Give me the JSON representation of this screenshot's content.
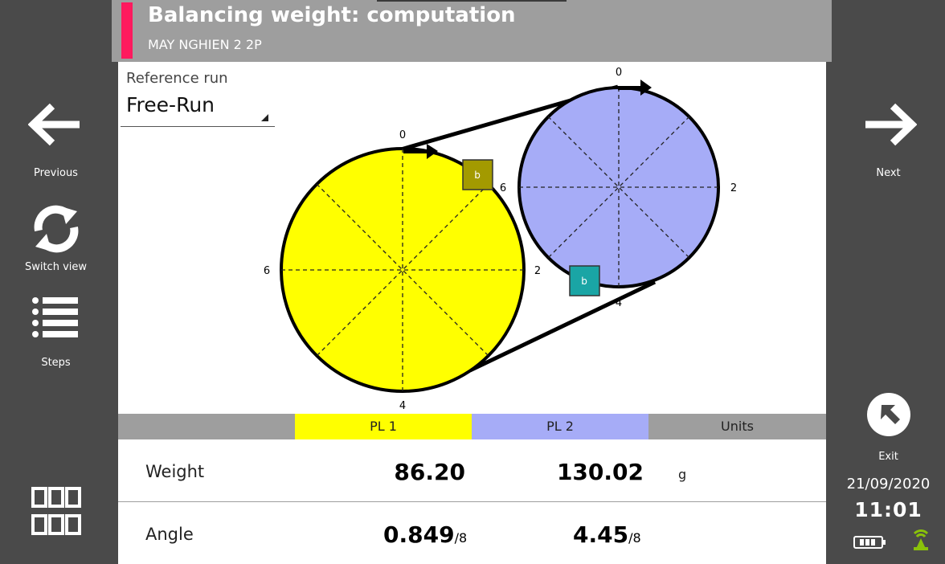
{
  "header": {
    "title": "Balancing weight: computation",
    "subtitle": "MAY NGHIEN 2 2P"
  },
  "nav": {
    "previous": "Previous",
    "switch_view": "Switch view",
    "steps": "Steps",
    "next": "Next",
    "exit": "Exit"
  },
  "reference_run": {
    "label": "Reference run",
    "value": "Free-Run"
  },
  "diagram": {
    "plane1": {
      "color": "#ffff00",
      "labels": {
        "top": "0",
        "right": "2",
        "bottom": "4",
        "left": "6"
      },
      "weight_marker": "b",
      "marker_color": "#a39a00"
    },
    "plane2": {
      "color": "#a6acf7",
      "labels": {
        "top": "0",
        "right": "2",
        "bottom": "4",
        "left": "6"
      },
      "weight_marker": "b",
      "marker_color": "#1aa5a5"
    }
  },
  "table": {
    "headers": {
      "pl1": "PL 1",
      "pl2": "PL 2",
      "units": "Units"
    },
    "rows": [
      {
        "label": "Weight",
        "pl1": "86.20",
        "pl2": "130.02",
        "pl1_suffix": "",
        "pl2_suffix": "",
        "unit": "g"
      },
      {
        "label": "Angle",
        "pl1": "0.849",
        "pl2": "4.45",
        "pl1_suffix": "/8",
        "pl2_suffix": "/8",
        "unit": ""
      }
    ]
  },
  "status": {
    "date": "21/09/2020",
    "time": "11:01"
  },
  "colors": {
    "accent": "#ff1a5e",
    "sidebar": "#4a4a4a",
    "header": "#9e9e9e",
    "antenna": "#8ac20a"
  }
}
